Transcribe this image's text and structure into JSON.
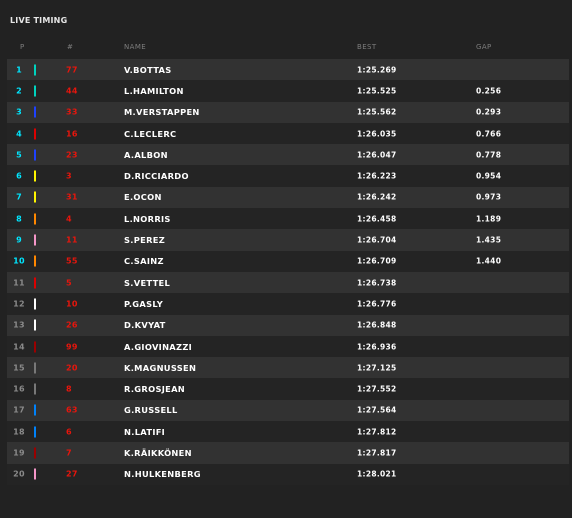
{
  "panel": {
    "title": "LIVE TIMING"
  },
  "columns": {
    "pos": "P",
    "num": "#",
    "name": "NAME",
    "best": "BEST",
    "gap": "GAP"
  },
  "rows": [
    {
      "pos": "1",
      "num": "77",
      "name": "V.BOTTAS",
      "best": "1:25.269",
      "gap": "",
      "team_color": "#00d2be"
    },
    {
      "pos": "2",
      "num": "44",
      "name": "L.HAMILTON",
      "best": "1:25.525",
      "gap": "0.256",
      "team_color": "#00d2be"
    },
    {
      "pos": "3",
      "num": "33",
      "name": "M.VERSTAPPEN",
      "best": "1:25.562",
      "gap": "0.293",
      "team_color": "#1e41ff"
    },
    {
      "pos": "4",
      "num": "16",
      "name": "C.LECLERC",
      "best": "1:26.035",
      "gap": "0.766",
      "team_color": "#dc0000"
    },
    {
      "pos": "5",
      "num": "23",
      "name": "A.ALBON",
      "best": "1:26.047",
      "gap": "0.778",
      "team_color": "#1e41ff"
    },
    {
      "pos": "6",
      "num": "3",
      "name": "D.RICCIARDO",
      "best": "1:26.223",
      "gap": "0.954",
      "team_color": "#fff500"
    },
    {
      "pos": "7",
      "num": "31",
      "name": "E.OCON",
      "best": "1:26.242",
      "gap": "0.973",
      "team_color": "#fff500"
    },
    {
      "pos": "8",
      "num": "4",
      "name": "L.NORRIS",
      "best": "1:26.458",
      "gap": "1.189",
      "team_color": "#ff8700"
    },
    {
      "pos": "9",
      "num": "11",
      "name": "S.PEREZ",
      "best": "1:26.704",
      "gap": "1.435",
      "team_color": "#f596c8"
    },
    {
      "pos": "10",
      "num": "55",
      "name": "C.SAINZ",
      "best": "1:26.709",
      "gap": "1.440",
      "team_color": "#ff8700"
    },
    {
      "pos": "11",
      "num": "5",
      "name": "S.VETTEL",
      "best": "1:26.738",
      "gap": "",
      "team_color": "#dc0000"
    },
    {
      "pos": "12",
      "num": "10",
      "name": "P.GASLY",
      "best": "1:26.776",
      "gap": "",
      "team_color": "#ffffff"
    },
    {
      "pos": "13",
      "num": "26",
      "name": "D.KVYAT",
      "best": "1:26.848",
      "gap": "",
      "team_color": "#ffffff"
    },
    {
      "pos": "14",
      "num": "99",
      "name": "A.GIOVINAZZI",
      "best": "1:26.936",
      "gap": "",
      "team_color": "#9b0000"
    },
    {
      "pos": "15",
      "num": "20",
      "name": "K.MAGNUSSEN",
      "best": "1:27.125",
      "gap": "",
      "team_color": "#787878"
    },
    {
      "pos": "16",
      "num": "8",
      "name": "R.GROSJEAN",
      "best": "1:27.552",
      "gap": "",
      "team_color": "#787878"
    },
    {
      "pos": "17",
      "num": "63",
      "name": "G.RUSSELL",
      "best": "1:27.564",
      "gap": "",
      "team_color": "#0082fa"
    },
    {
      "pos": "18",
      "num": "6",
      "name": "N.LATIFI",
      "best": "1:27.812",
      "gap": "",
      "team_color": "#0082fa"
    },
    {
      "pos": "19",
      "num": "7",
      "name": "K.RÄIKKÖNEN",
      "best": "1:27.817",
      "gap": "",
      "team_color": "#9b0000"
    },
    {
      "pos": "20",
      "num": "27",
      "name": "N.HULKENBERG",
      "best": "1:28.021",
      "gap": "",
      "team_color": "#f596c8"
    }
  ]
}
